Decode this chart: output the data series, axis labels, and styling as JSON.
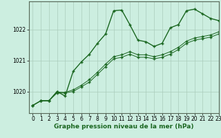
{
  "title": "Graphe pression niveau de la mer (hPa)",
  "background_color": "#cceee0",
  "grid_color": "#aaccbb",
  "line_color": "#1a6620",
  "xlim": [
    -0.5,
    23
  ],
  "ylim": [
    1019.3,
    1022.9
  ],
  "yticks": [
    1020,
    1021,
    1022
  ],
  "xticks": [
    0,
    1,
    2,
    3,
    4,
    5,
    6,
    7,
    8,
    9,
    10,
    11,
    12,
    13,
    14,
    15,
    16,
    17,
    18,
    19,
    20,
    21,
    22,
    23
  ],
  "series": {
    "main_x": [
      0,
      1,
      2,
      3,
      4,
      5,
      6,
      7,
      8,
      9,
      10,
      11,
      12,
      13,
      14,
      15,
      16,
      17,
      18,
      19,
      20,
      21,
      22,
      23
    ],
    "main_y": [
      1019.55,
      1019.7,
      1019.7,
      1020.0,
      1019.85,
      1020.65,
      1020.95,
      1021.2,
      1021.55,
      1021.85,
      1022.6,
      1022.62,
      1022.15,
      1021.65,
      1021.6,
      1021.45,
      1021.55,
      1022.05,
      1022.15,
      1022.6,
      1022.65,
      1022.5,
      1022.35,
      1022.28
    ],
    "low_x": [
      0,
      1,
      2,
      3,
      4,
      5,
      6,
      7,
      8,
      9,
      10,
      11,
      12,
      13,
      14,
      15,
      16,
      17,
      18,
      19,
      20,
      21,
      22,
      23
    ],
    "low_y": [
      1019.55,
      1019.7,
      1019.7,
      1019.95,
      1019.95,
      1020.0,
      1020.15,
      1020.3,
      1020.55,
      1020.8,
      1021.05,
      1021.1,
      1021.2,
      1021.1,
      1021.1,
      1021.05,
      1021.1,
      1021.2,
      1021.35,
      1021.55,
      1021.65,
      1021.7,
      1021.75,
      1021.85
    ],
    "mid_x": [
      0,
      1,
      2,
      3,
      4,
      5,
      6,
      7,
      8,
      9,
      10,
      11,
      12,
      13,
      14,
      15,
      16,
      17,
      18,
      19,
      20,
      21,
      22,
      23
    ],
    "mid_y": [
      1019.55,
      1019.7,
      1019.7,
      1019.98,
      1019.97,
      1020.05,
      1020.2,
      1020.38,
      1020.62,
      1020.88,
      1021.12,
      1021.18,
      1021.28,
      1021.18,
      1021.18,
      1021.12,
      1021.18,
      1021.28,
      1021.42,
      1021.62,
      1021.72,
      1021.77,
      1021.82,
      1021.92
    ]
  },
  "markersize": 2.8,
  "linewidth_main": 1.0,
  "linewidth_thin": 0.7,
  "tick_fontsize": 5.5,
  "xlabel_fontsize": 6.5
}
